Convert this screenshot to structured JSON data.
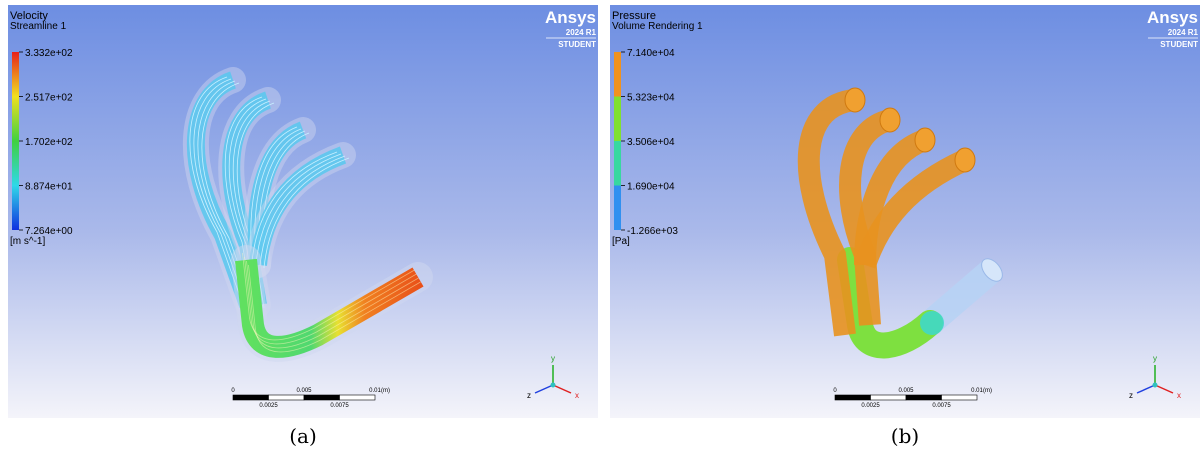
{
  "panels": [
    {
      "title": "Velocity",
      "subtitle": "Streamline 1",
      "legend": [
        "3.332e+02",
        "2.517e+02",
        "1.702e+02",
        "8.874e+01",
        "7.264e+00"
      ],
      "unit": "[m s^-1]",
      "logo": {
        "brand": "Ansys",
        "version": "2024 R1",
        "edition": "STUDENT"
      },
      "scale_bar": {
        "top": [
          "0",
          "0.005",
          "0.01"
        ],
        "unit": "(m)",
        "bottom": [
          "0.0025",
          "0.0075"
        ]
      },
      "triad": [
        "y",
        "z",
        "x"
      ],
      "caption": "(a)"
    },
    {
      "title": "Pressure",
      "subtitle": "Volume Rendering 1",
      "legend": [
        "7.140e+04",
        "5.323e+04",
        "3.506e+04",
        "1.690e+04",
        "-1.266e+03"
      ],
      "unit": "[Pa]",
      "logo": {
        "brand": "Ansys",
        "version": "2024 R1",
        "edition": "STUDENT"
      },
      "scale_bar": {
        "top": [
          "0",
          "0.005",
          "0.01"
        ],
        "unit": "(m)",
        "bottom": [
          "0.0025",
          "0.0075"
        ]
      },
      "triad": [
        "y",
        "z",
        "x"
      ],
      "caption": "(b)"
    }
  ]
}
